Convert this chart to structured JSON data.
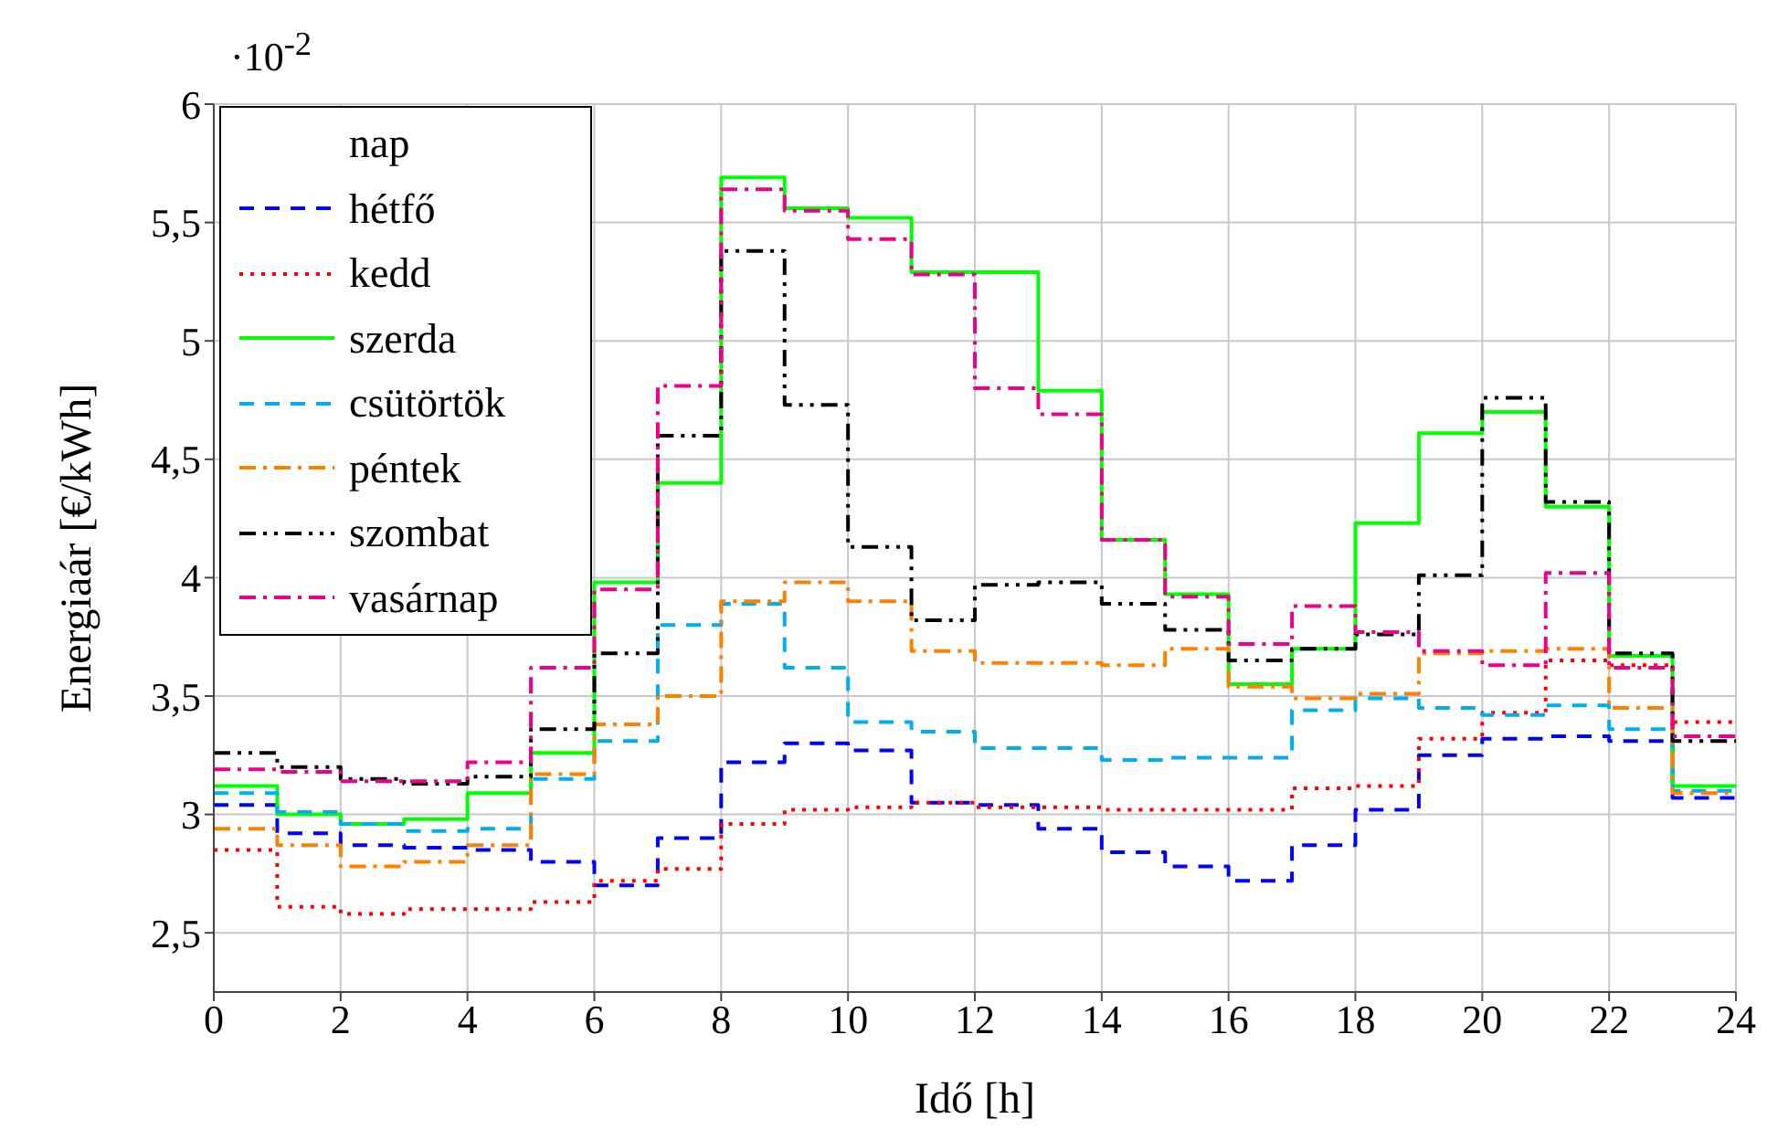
{
  "chart_data": {
    "type": "step",
    "xlabel": "Idő [h]",
    "ylabel": "Energiaár [€/kWh]",
    "annotations": [
      "·10$^{-2}$"
    ],
    "legend_title": "nap",
    "legend": "top left",
    "grid": true,
    "x": [
      0,
      1,
      2,
      3,
      4,
      5,
      6,
      7,
      8,
      9,
      10,
      11,
      12,
      13,
      14,
      15,
      16,
      17,
      18,
      19,
      20,
      21,
      22,
      23,
      24
    ],
    "xlim": [
      0,
      24
    ],
    "xticks": [
      0,
      2,
      4,
      6,
      8,
      10,
      12,
      14,
      16,
      18,
      20,
      22,
      24
    ],
    "ylim": [
      2.25,
      6
    ],
    "yticks": [
      {
        "value": 2.5,
        "label": "2,5"
      },
      3,
      {
        "value": 3.5,
        "label": "3,5"
      },
      4,
      {
        "value": 4.5,
        "label": "4,5"
      },
      5,
      {
        "value": 5.5,
        "label": "5,5"
      },
      6
    ],
    "series": [
      {
        "name": "hétfő",
        "color": "#0000ff",
        "line_style": "dashed",
        "values": [
          3.04,
          2.92,
          2.87,
          2.86,
          2.85,
          2.8,
          2.7,
          2.9,
          3.22,
          3.3,
          3.27,
          3.05,
          3.04,
          2.94,
          2.84,
          2.78,
          2.72,
          2.87,
          3.02,
          3.25,
          3.32,
          3.33,
          3.31,
          3.07,
          3.07
        ]
      },
      {
        "name": "kedd",
        "color": "#ff0000",
        "line_style": "dotted",
        "values": [
          2.85,
          2.61,
          2.58,
          2.6,
          2.6,
          2.63,
          2.72,
          2.77,
          2.96,
          3.02,
          3.03,
          3.05,
          3.03,
          3.03,
          3.02,
          3.02,
          3.02,
          3.11,
          3.12,
          3.32,
          3.43,
          3.65,
          3.63,
          3.39,
          3.39
        ]
      },
      {
        "name": "szerda",
        "color": "#00ff00",
        "line_style": "solid",
        "values": [
          3.12,
          3.0,
          2.96,
          2.98,
          3.09,
          3.26,
          3.98,
          4.4,
          5.69,
          5.56,
          5.52,
          5.29,
          5.29,
          4.79,
          4.16,
          3.93,
          3.55,
          3.7,
          4.23,
          4.61,
          4.7,
          4.3,
          3.67,
          3.12,
          3.12
        ]
      },
      {
        "name": "csütörtök",
        "color": "#00aeef",
        "line_style": "dashed",
        "values": [
          3.09,
          3.01,
          2.96,
          2.93,
          2.94,
          3.15,
          3.31,
          3.8,
          3.89,
          3.62,
          3.39,
          3.35,
          3.28,
          3.28,
          3.23,
          3.24,
          3.24,
          3.44,
          3.49,
          3.45,
          3.42,
          3.46,
          3.36,
          3.1,
          3.1
        ]
      },
      {
        "name": "péntek",
        "color": "#ff8000",
        "line_style": "dashdot",
        "values": [
          2.94,
          2.87,
          2.78,
          2.8,
          2.87,
          3.17,
          3.38,
          3.5,
          3.9,
          3.98,
          3.9,
          3.69,
          3.64,
          3.64,
          3.63,
          3.7,
          3.54,
          3.49,
          3.51,
          3.68,
          3.69,
          3.7,
          3.45,
          3.09,
          3.09
        ]
      },
      {
        "name": "szombat",
        "color": "#000000",
        "line_style": "dashdotdot",
        "values": [
          3.26,
          3.2,
          3.15,
          3.13,
          3.16,
          3.36,
          3.68,
          4.6,
          5.38,
          4.73,
          4.13,
          3.82,
          3.97,
          3.98,
          3.89,
          3.78,
          3.65,
          3.7,
          3.76,
          4.01,
          4.76,
          4.32,
          3.68,
          3.31,
          3.31
        ]
      },
      {
        "name": "vasárnap",
        "color": "#ec008c",
        "line_style": "dashdot",
        "values": [
          3.19,
          3.18,
          3.14,
          3.14,
          3.22,
          3.62,
          3.95,
          4.81,
          5.64,
          5.55,
          5.43,
          5.28,
          4.8,
          4.69,
          4.16,
          3.92,
          3.72,
          3.88,
          3.77,
          3.69,
          3.63,
          4.02,
          3.62,
          3.33,
          3.33
        ]
      }
    ]
  }
}
